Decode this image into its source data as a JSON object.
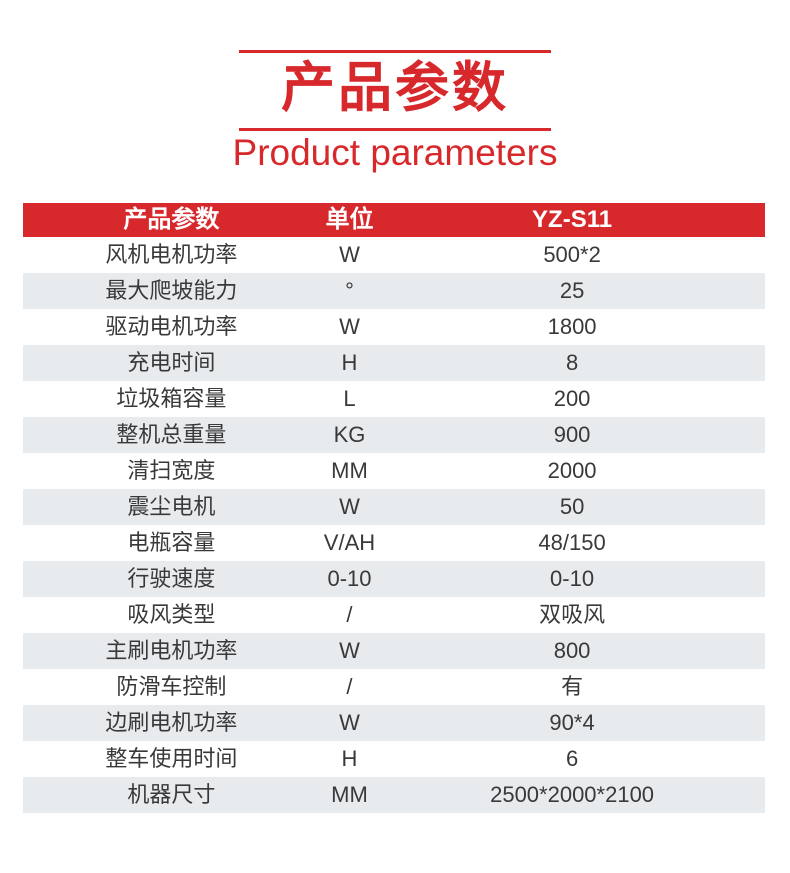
{
  "header": {
    "title_cn": "产品参数",
    "title_en": "Product parameters"
  },
  "colors": {
    "accent": "#d7282c",
    "header-text": "#ffffff",
    "text": "#393939",
    "row-bg": "#ffffff",
    "row-alt": "#e8ebee"
  },
  "table": {
    "headers": [
      "产品参数",
      "单位",
      "YZ-S11"
    ],
    "rows": [
      {
        "param": "风机电机功率",
        "unit": "W",
        "value": "500*2"
      },
      {
        "param": "最大爬坡能力",
        "unit": "°",
        "value": "25"
      },
      {
        "param": "驱动电机功率",
        "unit": "W",
        "value": "1800"
      },
      {
        "param": "充电时间",
        "unit": "H",
        "value": "8"
      },
      {
        "param": "垃圾箱容量",
        "unit": "L",
        "value": "200"
      },
      {
        "param": "整机总重量",
        "unit": "KG",
        "value": "900"
      },
      {
        "param": "清扫宽度",
        "unit": "MM",
        "value": "2000"
      },
      {
        "param": "震尘电机",
        "unit": "W",
        "value": "50"
      },
      {
        "param": "电瓶容量",
        "unit": "V/AH",
        "value": "48/150"
      },
      {
        "param": "行驶速度",
        "unit": "0-10",
        "value": "0-10"
      },
      {
        "param": "吸风类型",
        "unit": "/",
        "value": "双吸风"
      },
      {
        "param": "主刷电机功率",
        "unit": "W",
        "value": "800"
      },
      {
        "param": "防滑车控制",
        "unit": "/",
        "value": "有"
      },
      {
        "param": "边刷电机功率",
        "unit": "W",
        "value": "90*4"
      },
      {
        "param": "整车使用时间",
        "unit": "H",
        "value": "6"
      },
      {
        "param": "机器尺寸",
        "unit": "MM",
        "value": "2500*2000*2100"
      }
    ]
  }
}
